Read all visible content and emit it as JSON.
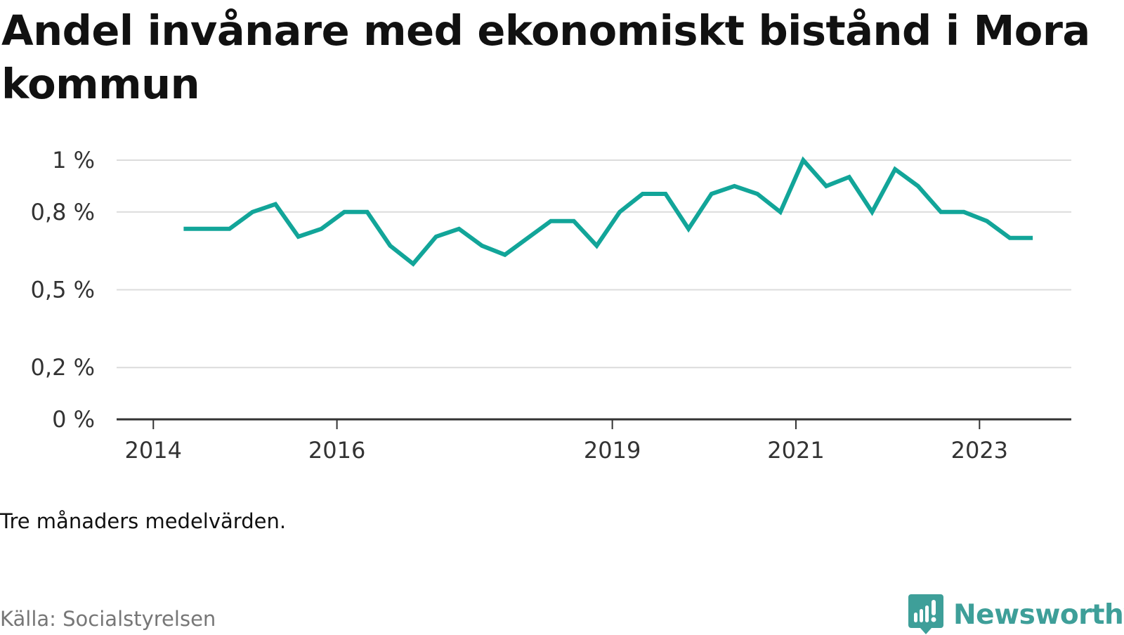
{
  "title": "Andel invånare med ekonomiskt bistånd i Mora kommun",
  "note": "Tre månaders medelvärden.",
  "source": "Källa: Socialstyrelsen",
  "brand": {
    "name": "Newsworthy",
    "color": "#3e9f99"
  },
  "chart_data": {
    "type": "line",
    "x_tick_labels": [
      "2014",
      "2016",
      "2019",
      "2021",
      "2023"
    ],
    "x_ticks": [
      2014.0,
      2016.0,
      2019.0,
      2021.0,
      2023.0
    ],
    "xlim": [
      2013.6,
      2024.0
    ],
    "y_ticks": [
      0,
      0.2,
      0.5,
      0.8,
      1.0
    ],
    "y_tick_labels": [
      "0 %",
      "0,2 %",
      "0,5 %",
      "0,8 %",
      "1 %"
    ],
    "ylim": [
      0,
      1.0
    ],
    "grid": true,
    "line_color": "#12a599",
    "series": [
      {
        "x": [
          2014.33,
          2014.58,
          2014.83,
          2015.08,
          2015.33,
          2015.58,
          2015.83,
          2016.08,
          2016.33,
          2016.58,
          2016.83,
          2017.08,
          2017.33,
          2017.58,
          2017.83,
          2018.08,
          2018.33,
          2018.58,
          2018.83,
          2019.08,
          2019.33,
          2019.58,
          2019.83,
          2020.08,
          2020.33,
          2020.58,
          2020.83,
          2021.08,
          2021.33,
          2021.58,
          2021.83,
          2022.08,
          2022.33,
          2022.58,
          2022.83,
          2023.08,
          2023.33,
          2023.58
        ],
        "values": [
          0.735,
          0.735,
          0.735,
          0.8,
          0.83,
          0.705,
          0.735,
          0.8,
          0.8,
          0.67,
          0.6,
          0.705,
          0.735,
          0.67,
          0.635,
          0.7,
          0.765,
          0.765,
          0.67,
          0.8,
          0.87,
          0.87,
          0.735,
          0.87,
          0.9,
          0.87,
          0.8,
          1.0,
          0.9,
          0.935,
          0.8,
          0.965,
          0.9,
          0.8,
          0.8,
          0.765,
          0.7,
          0.7
        ]
      }
    ]
  }
}
